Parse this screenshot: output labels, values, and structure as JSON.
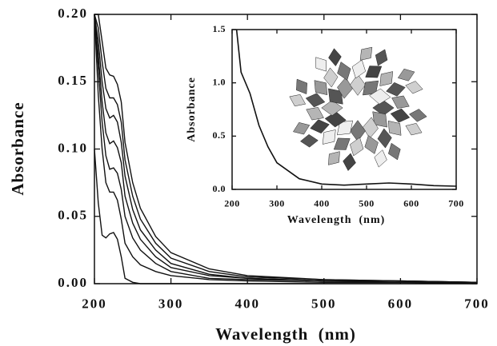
{
  "chart_data": [
    {
      "type": "line",
      "xlabel": "Wavelength  (nm)",
      "ylabel": "Absorbance",
      "x": [
        200,
        205,
        210,
        215,
        220,
        225,
        230,
        235,
        240,
        250,
        260,
        280,
        300,
        350,
        400,
        500,
        600,
        700
      ],
      "series": [
        {
          "color": "#111111",
          "values": [
            0.1,
            0.06,
            0.036,
            0.034,
            0.037,
            0.038,
            0.033,
            0.02,
            0.004,
            0.001,
            0,
            0,
            0,
            0,
            0,
            0,
            0,
            0
          ]
        },
        {
          "color": "#111111",
          "values": [
            0.2,
            0.14,
            0.1,
            0.075,
            0.068,
            0.068,
            0.062,
            0.048,
            0.03,
            0.02,
            0.014,
            0.009,
            0.006,
            0.003,
            0.002,
            0.001,
            0.001,
            0
          ]
        },
        {
          "color": "#111111",
          "values": [
            0.2,
            0.16,
            0.12,
            0.095,
            0.085,
            0.086,
            0.082,
            0.07,
            0.05,
            0.034,
            0.025,
            0.015,
            0.009,
            0.004,
            0.003,
            0.002,
            0.001,
            0.001
          ]
        },
        {
          "color": "#111111",
          "values": [
            0.2,
            0.17,
            0.135,
            0.112,
            0.104,
            0.106,
            0.101,
            0.09,
            0.065,
            0.045,
            0.033,
            0.02,
            0.012,
            0.006,
            0.004,
            0.002,
            0.001,
            0.001
          ]
        },
        {
          "color": "#111111",
          "values": [
            0.2,
            0.18,
            0.15,
            0.13,
            0.123,
            0.125,
            0.12,
            0.105,
            0.08,
            0.055,
            0.04,
            0.025,
            0.015,
            0.007,
            0.004,
            0.002,
            0.002,
            0.001
          ]
        },
        {
          "color": "#111111",
          "values": [
            0.2,
            0.19,
            0.165,
            0.145,
            0.138,
            0.138,
            0.133,
            0.12,
            0.092,
            0.065,
            0.048,
            0.03,
            0.019,
            0.009,
            0.005,
            0.003,
            0.002,
            0.001
          ]
        },
        {
          "color": "#111111",
          "values": [
            0.2,
            0.2,
            0.18,
            0.16,
            0.155,
            0.154,
            0.148,
            0.135,
            0.105,
            0.075,
            0.056,
            0.035,
            0.023,
            0.011,
            0.006,
            0.003,
            0.002,
            0.001
          ]
        }
      ],
      "xlim": [
        200,
        700
      ],
      "ylim": [
        0,
        0.2
      ],
      "xticks": [
        200,
        300,
        400,
        500,
        600,
        700
      ],
      "yticks": [
        {
          "value": 0,
          "label": "0.00"
        },
        {
          "value": 0.05,
          "label": "0.05"
        },
        {
          "value": 0.1,
          "label": "0.10"
        },
        {
          "value": 0.15,
          "label": "0.15"
        },
        {
          "value": 0.2,
          "label": "0.20"
        }
      ]
    },
    {
      "type": "line",
      "xlabel": "Wavelength  (nm)",
      "ylabel": "Absorbance",
      "x": [
        210,
        220,
        240,
        260,
        280,
        300,
        350,
        400,
        450,
        500,
        550,
        600,
        650,
        700
      ],
      "series": [
        {
          "color": "#111111",
          "values": [
            1.5,
            1.1,
            0.9,
            0.6,
            0.4,
            0.25,
            0.1,
            0.05,
            0.04,
            0.05,
            0.06,
            0.05,
            0.035,
            0.03
          ]
        }
      ],
      "xlim": [
        200,
        700
      ],
      "ylim": [
        0,
        1.5
      ],
      "xticks": [
        200,
        300,
        400,
        500,
        600,
        700
      ],
      "yticks": [
        {
          "value": 0,
          "label": "0.0"
        },
        {
          "value": 0.5,
          "label": "0.5"
        },
        {
          "value": 1,
          "label": "1.0"
        },
        {
          "value": 1.5,
          "label": "1.5"
        }
      ]
    }
  ]
}
